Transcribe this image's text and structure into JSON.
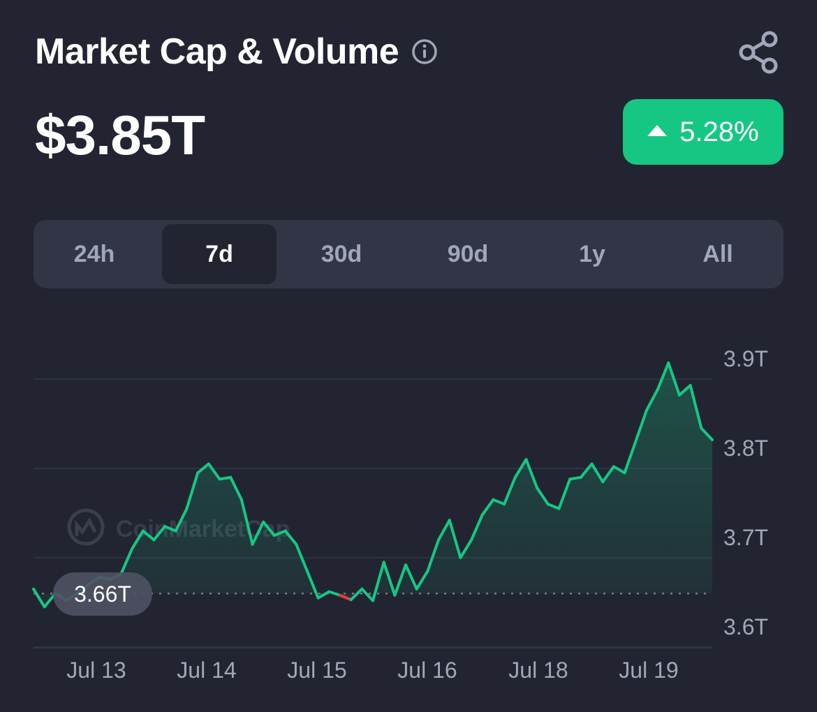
{
  "header": {
    "title": "Market Cap & Volume",
    "info_icon": "info-circle-icon",
    "share_icon": "share-icon"
  },
  "summary": {
    "value": "$3.85T",
    "change": "5.28%",
    "change_direction": "up",
    "change_color": "#16c784"
  },
  "tabs": [
    {
      "label": "24h",
      "active": false
    },
    {
      "label": "7d",
      "active": true
    },
    {
      "label": "30d",
      "active": false
    },
    {
      "label": "90d",
      "active": false
    },
    {
      "label": "1y",
      "active": false
    },
    {
      "label": "All",
      "active": false
    }
  ],
  "chart_data": {
    "type": "area",
    "watermark": "CoinMarketCap",
    "baseline_label": "3.66T",
    "baseline_value": 3.66,
    "x_labels": [
      "Jul 13",
      "Jul 14",
      "Jul 15",
      "Jul 16",
      "Jul 18",
      "Jul 19"
    ],
    "y_labels": [
      "3.9T",
      "3.8T",
      "3.7T",
      "3.6T"
    ],
    "y_ticks": [
      3.9,
      3.8,
      3.7,
      3.6
    ],
    "ylim": [
      3.58,
      3.95
    ],
    "up_color": "#16c784",
    "down_color": "#ea3943",
    "grid": true,
    "series": [
      {
        "x": [
          0,
          0.5,
          1.0,
          1.5,
          2.0,
          2.5,
          3.0,
          3.5,
          4.0,
          4.5,
          5.0,
          5.5,
          6.0,
          6.5,
          7.0,
          7.5,
          8.0,
          8.5,
          9.0,
          9.5,
          10.0,
          10.5,
          11.0,
          11.5,
          12.0,
          12.5,
          13.0,
          13.5,
          14.0,
          14.5,
          15.0,
          15.5,
          16.0,
          16.5,
          17.0,
          17.5,
          18.0,
          18.5,
          19.0,
          19.5,
          20.0,
          20.5,
          21.0,
          21.5,
          22.0,
          22.5,
          23.0,
          23.5,
          24.0,
          24.5,
          25.0,
          25.5,
          26.0,
          26.5,
          27.0,
          27.5,
          28.0,
          28.5,
          29.0,
          29.5,
          30.0,
          30.5,
          31.0
        ],
        "values": [
          3.665,
          3.645,
          3.66,
          3.652,
          3.66,
          3.67,
          3.678,
          3.676,
          3.682,
          3.71,
          3.73,
          3.72,
          3.735,
          3.73,
          3.755,
          3.795,
          3.805,
          3.788,
          3.79,
          3.765,
          3.715,
          3.74,
          3.725,
          3.73,
          3.715,
          3.685,
          3.655,
          3.662,
          3.658,
          3.653,
          3.665,
          3.652,
          3.695,
          3.658,
          3.692,
          3.665,
          3.685,
          3.72,
          3.742,
          3.7,
          3.72,
          3.748,
          3.765,
          3.76,
          3.79,
          3.81,
          3.778,
          3.76,
          3.755,
          3.788,
          3.79,
          3.805,
          3.785,
          3.802,
          3.795,
          3.83,
          3.865,
          3.888,
          3.918,
          3.882,
          3.893,
          3.845,
          3.832
        ]
      }
    ]
  }
}
